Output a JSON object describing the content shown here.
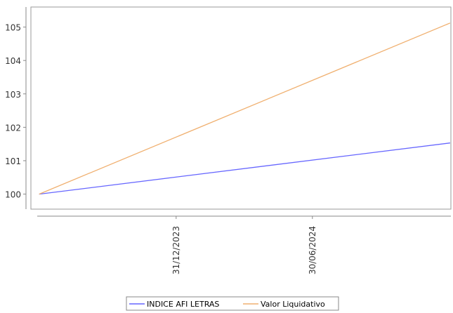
{
  "chart_data": {
    "type": "line",
    "title": "",
    "xlabel": "",
    "ylabel": "",
    "x": [
      "2023-07-01",
      "2024-12-31"
    ],
    "x_ticks": [
      {
        "date": "2023-12-31",
        "label": "31/12/2023"
      },
      {
        "date": "2024-06-30",
        "label": "30/06/2024"
      }
    ],
    "xlim": [
      "2023-06-20",
      "2025-01-01"
    ],
    "y_ticks": [
      100,
      101,
      102,
      103,
      104,
      105
    ],
    "ylim": [
      99.55,
      105.6
    ],
    "grid": false,
    "legend_position": "bottom",
    "series": [
      {
        "name": "INDICE AFI LETRAS",
        "color": "#6666ff",
        "values": [
          100.0,
          101.53
        ]
      },
      {
        "name": "Valor Liquidativo",
        "color": "#f0b070",
        "values": [
          100.0,
          105.12
        ]
      }
    ]
  }
}
